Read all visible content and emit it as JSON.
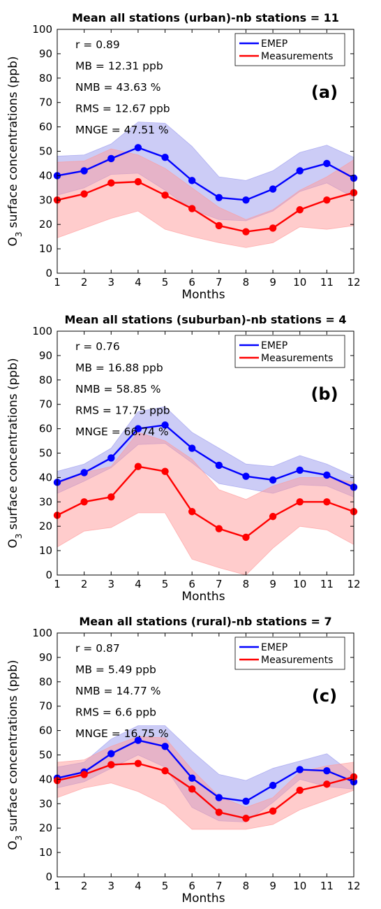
{
  "chart_data": [
    {
      "type": "line",
      "title": "Mean all stations (urban)-nb stations = 11",
      "panel_label": "(a)",
      "xlabel": "Months",
      "ylabel_main": "O",
      "ylabel_sub": "3",
      "ylabel_rest": " surface concentrations (ppb)",
      "xlim": [
        1,
        12
      ],
      "ylim": [
        0,
        100
      ],
      "x_ticks": [
        "1",
        "2",
        "3",
        "4",
        "5",
        "6",
        "7",
        "8",
        "9",
        "10",
        "11",
        "12"
      ],
      "y_ticks": [
        "0",
        "10",
        "20",
        "30",
        "40",
        "50",
        "60",
        "70",
        "80",
        "90",
        "100"
      ],
      "legend_position": "top-right",
      "stats": [
        "r = 0.89",
        "MB = 12.31  ppb",
        "NMB = 43.63  %",
        "RMS = 12.67  ppb",
        "MNGE = 47.51 %"
      ],
      "x": [
        1,
        2,
        3,
        4,
        5,
        6,
        7,
        8,
        9,
        10,
        11,
        12
      ],
      "series": [
        {
          "name": "EMEP",
          "color": "#0000ff",
          "band_color": "#9999ee",
          "values": [
            40,
            42,
            47,
            51.5,
            47.5,
            38,
            31,
            30,
            34.5,
            42,
            45,
            39
          ],
          "upper": [
            48,
            48.5,
            53,
            62,
            61.5,
            52,
            39.5,
            38,
            42,
            49.5,
            52.5,
            47.5
          ],
          "lower": [
            32,
            35,
            40.5,
            41,
            34,
            26,
            22,
            21.5,
            25.5,
            33.5,
            37,
            31
          ]
        },
        {
          "name": "Measurements",
          "color": "#ff0000",
          "band_color": "#ff9999",
          "values": [
            30,
            32.5,
            37,
            37.5,
            32,
            26.5,
            19.5,
            17,
            18.5,
            26,
            30,
            33
          ],
          "upper": [
            45.5,
            46,
            51,
            48.5,
            43,
            35,
            27,
            22,
            26,
            34,
            39.5,
            46.5
          ],
          "lower": [
            14.5,
            18.5,
            22.5,
            25.5,
            18,
            15,
            12.5,
            10.5,
            12.5,
            19,
            18,
            19.5
          ]
        }
      ]
    },
    {
      "type": "line",
      "title": "Mean all stations (suburban)-nb stations = 4",
      "panel_label": "(b)",
      "xlabel": "Months",
      "ylabel_main": "O",
      "ylabel_sub": "3",
      "ylabel_rest": " surface concentrations (ppb)",
      "xlim": [
        1,
        12
      ],
      "ylim": [
        0,
        100
      ],
      "x_ticks": [
        "1",
        "2",
        "3",
        "4",
        "5",
        "6",
        "7",
        "8",
        "9",
        "10",
        "11",
        "12"
      ],
      "y_ticks": [
        "0",
        "10",
        "20",
        "30",
        "40",
        "50",
        "60",
        "70",
        "80",
        "90",
        "100"
      ],
      "legend_position": "top-right",
      "stats": [
        "r = 0.76",
        "MB = 16.88  ppb",
        "NMB = 58.85  %",
        "RMS = 17.75  ppb",
        "MNGE = 66.74 %"
      ],
      "x": [
        1,
        2,
        3,
        4,
        5,
        6,
        7,
        8,
        9,
        10,
        11,
        12
      ],
      "series": [
        {
          "name": "EMEP",
          "color": "#0000ff",
          "band_color": "#9999ee",
          "values": [
            38,
            42,
            48,
            60,
            61.5,
            52,
            45,
            40.5,
            39,
            43,
            41,
            36
          ],
          "upper": [
            42.5,
            45.5,
            52,
            67,
            69,
            58.5,
            52,
            45.5,
            44.5,
            49,
            45.5,
            40.5
          ],
          "lower": [
            33.5,
            38.5,
            44,
            53.5,
            54,
            46,
            37.5,
            35.5,
            33.5,
            37,
            36.5,
            32
          ]
        },
        {
          "name": "Measurements",
          "color": "#ff0000",
          "band_color": "#ff9999",
          "values": [
            24.5,
            30,
            32,
            44.5,
            42.5,
            26,
            19,
            15.5,
            24,
            30,
            30,
            26
          ],
          "upper": [
            37.5,
            42,
            44.5,
            58.5,
            55,
            47.5,
            35,
            31,
            36.5,
            40,
            40,
            38
          ],
          "lower": [
            11.5,
            18,
            19.5,
            25.5,
            25.5,
            6.5,
            3,
            0,
            11,
            20,
            18.5,
            12.5
          ]
        }
      ]
    },
    {
      "type": "line",
      "title": "Mean all stations (rural)-nb stations = 7",
      "panel_label": "(c)",
      "xlabel": "Months",
      "ylabel_main": "O",
      "ylabel_sub": "3",
      "ylabel_rest": " surface concentrations (ppb)",
      "xlim": [
        1,
        12
      ],
      "ylim": [
        0,
        100
      ],
      "x_ticks": [
        "1",
        "2",
        "3",
        "4",
        "5",
        "6",
        "7",
        "8",
        "9",
        "10",
        "11",
        "12"
      ],
      "y_ticks": [
        "0",
        "10",
        "20",
        "30",
        "40",
        "50",
        "60",
        "70",
        "80",
        "90",
        "100"
      ],
      "legend_position": "top-right",
      "stats": [
        "r = 0.87",
        "MB = 5.49  ppb",
        "NMB = 14.77 %",
        "RMS = 6.6  ppb",
        "MNGE = 16.75 %"
      ],
      "x": [
        1,
        2,
        3,
        4,
        5,
        6,
        7,
        8,
        9,
        10,
        11,
        12
      ],
      "series": [
        {
          "name": "EMEP",
          "color": "#0000ff",
          "band_color": "#9999ee",
          "values": [
            40.5,
            43,
            50.5,
            56,
            53.5,
            40.5,
            32.5,
            31,
            37.5,
            44,
            43.5,
            39
          ],
          "upper": [
            45,
            47,
            56.5,
            62,
            62,
            51.5,
            42,
            39.5,
            44.5,
            47.5,
            50.5,
            42
          ],
          "lower": [
            36.5,
            39,
            44.5,
            50,
            45,
            28.5,
            23,
            22.5,
            30.5,
            40,
            37,
            36
          ]
        },
        {
          "name": "Measurements",
          "color": "#ff0000",
          "band_color": "#ff9999",
          "values": [
            39.5,
            42,
            46,
            46.5,
            43.5,
            36,
            26.5,
            24,
            27,
            35.5,
            38,
            41
          ],
          "upper": [
            47,
            48,
            53.5,
            57.5,
            57,
            44,
            33,
            28.5,
            32.5,
            43,
            45.5,
            47
          ],
          "lower": [
            32.5,
            36.5,
            38.5,
            35,
            29.5,
            19.5,
            19.5,
            19.5,
            21.5,
            27.5,
            31.5,
            35.5
          ]
        }
      ]
    }
  ]
}
